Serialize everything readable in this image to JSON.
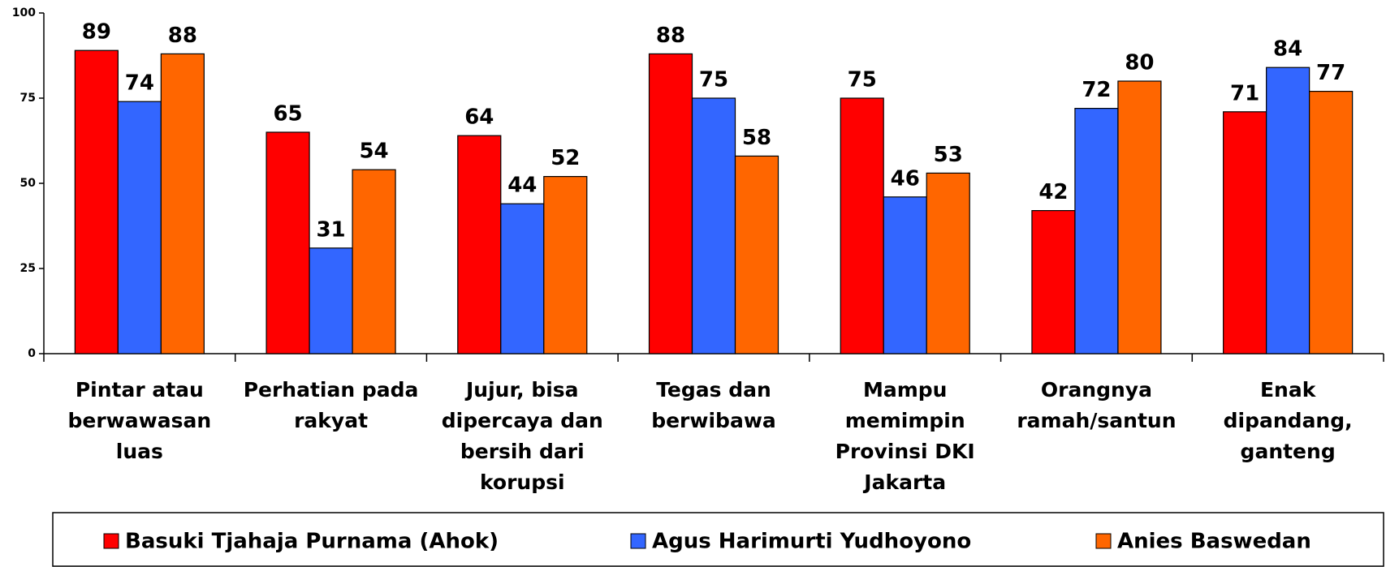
{
  "chart_data": {
    "type": "bar",
    "categories": [
      "Pintar atau berwawasan luas",
      "Perhatian pada rakyat",
      "Jujur, bisa dipercaya dan bersih dari korupsi",
      "Tegas dan berwibawa",
      "Mampu memimpin Provinsi DKI Jakarta",
      "Orangnya ramah/santun",
      "Enak dipandang, ganteng"
    ],
    "series": [
      {
        "name": "Basuki Tjahaja Purnama (Ahok)",
        "color": "#ff0000",
        "values": [
          89,
          65,
          64,
          88,
          75,
          42,
          71
        ]
      },
      {
        "name": "Agus Harimurti Yudhoyono",
        "color": "#3366ff",
        "values": [
          74,
          31,
          44,
          75,
          46,
          72,
          84
        ]
      },
      {
        "name": "Anies Baswedan",
        "color": "#ff6600",
        "values": [
          88,
          54,
          52,
          58,
          53,
          80,
          77
        ]
      }
    ],
    "ylim": [
      0,
      100
    ],
    "yticks": [
      0,
      25,
      50,
      75,
      100
    ],
    "grid": false,
    "legend": "bottom"
  }
}
